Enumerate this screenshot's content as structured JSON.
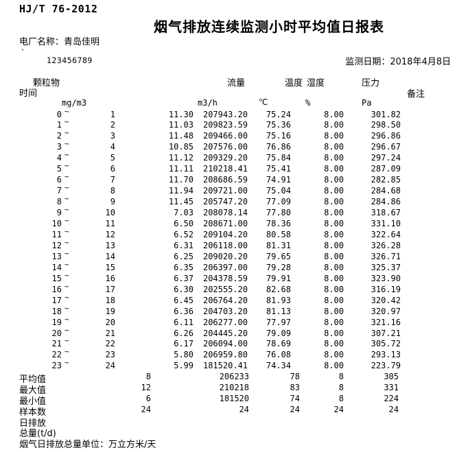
{
  "page": {
    "standard": "HJ/T 76-2012",
    "title": "烟气排放连续监测小时平均值日报表",
    "plant_label": "电厂名称：",
    "plant_name": "青岛佳明",
    "code_mark": "`",
    "code": "123456789",
    "date_label": "监测日期：",
    "date_value": "2018年4月8日"
  },
  "table": {
    "col_headers": {
      "time": "时间",
      "pm": "颗粒物",
      "flow": "流量",
      "temp": "温度",
      "humidity": "湿度",
      "pressure": "压力",
      "remark": "备注"
    },
    "units": {
      "pm": "mg/m3",
      "flow": "m3/h",
      "temp": "℃",
      "humidity": "%",
      "pressure": "Pa"
    },
    "tilde": "~",
    "rows": [
      {
        "start": "0",
        "end": "1",
        "pm": "11.30",
        "flow": "207943.20",
        "temp": "75.24",
        "humidity": "8.00",
        "pressure": "301.82"
      },
      {
        "start": "1",
        "end": "2",
        "pm": "11.03",
        "flow": "209823.59",
        "temp": "75.36",
        "humidity": "8.00",
        "pressure": "298.50"
      },
      {
        "start": "2",
        "end": "3",
        "pm": "11.48",
        "flow": "209466.00",
        "temp": "75.16",
        "humidity": "8.00",
        "pressure": "296.86"
      },
      {
        "start": "3",
        "end": "4",
        "pm": "10.85",
        "flow": "207576.00",
        "temp": "76.86",
        "humidity": "8.00",
        "pressure": "296.67"
      },
      {
        "start": "4",
        "end": "5",
        "pm": "11.12",
        "flow": "209329.20",
        "temp": "75.84",
        "humidity": "8.00",
        "pressure": "297.24"
      },
      {
        "start": "5",
        "end": "6",
        "pm": "11.11",
        "flow": "210218.41",
        "temp": "75.41",
        "humidity": "8.00",
        "pressure": "287.09"
      },
      {
        "start": "6",
        "end": "7",
        "pm": "11.70",
        "flow": "208686.59",
        "temp": "74.91",
        "humidity": "8.00",
        "pressure": "282.85"
      },
      {
        "start": "7",
        "end": "8",
        "pm": "11.94",
        "flow": "209721.00",
        "temp": "75.04",
        "humidity": "8.00",
        "pressure": "284.68"
      },
      {
        "start": "8",
        "end": "9",
        "pm": "11.45",
        "flow": "205747.20",
        "temp": "77.09",
        "humidity": "8.00",
        "pressure": "284.86"
      },
      {
        "start": "9",
        "end": "10",
        "pm": "7.03",
        "flow": "208078.14",
        "temp": "77.80",
        "humidity": "8.00",
        "pressure": "318.67"
      },
      {
        "start": "10",
        "end": "11",
        "pm": "6.50",
        "flow": "208671.00",
        "temp": "78.36",
        "humidity": "8.00",
        "pressure": "331.10"
      },
      {
        "start": "11",
        "end": "12",
        "pm": "6.52",
        "flow": "209104.20",
        "temp": "80.58",
        "humidity": "8.00",
        "pressure": "322.64"
      },
      {
        "start": "12",
        "end": "13",
        "pm": "6.31",
        "flow": "206118.00",
        "temp": "81.31",
        "humidity": "8.00",
        "pressure": "326.28"
      },
      {
        "start": "13",
        "end": "14",
        "pm": "6.25",
        "flow": "209020.20",
        "temp": "79.65",
        "humidity": "8.00",
        "pressure": "326.71"
      },
      {
        "start": "14",
        "end": "15",
        "pm": "6.35",
        "flow": "206397.00",
        "temp": "79.28",
        "humidity": "8.00",
        "pressure": "325.37"
      },
      {
        "start": "15",
        "end": "16",
        "pm": "6.37",
        "flow": "204378.59",
        "temp": "79.91",
        "humidity": "8.00",
        "pressure": "323.90"
      },
      {
        "start": "16",
        "end": "17",
        "pm": "6.30",
        "flow": "202555.20",
        "temp": "82.68",
        "humidity": "8.00",
        "pressure": "316.19"
      },
      {
        "start": "17",
        "end": "18",
        "pm": "6.45",
        "flow": "206764.20",
        "temp": "81.93",
        "humidity": "8.00",
        "pressure": "320.42"
      },
      {
        "start": "18",
        "end": "19",
        "pm": "6.36",
        "flow": "204703.20",
        "temp": "81.13",
        "humidity": "8.00",
        "pressure": "320.97"
      },
      {
        "start": "19",
        "end": "20",
        "pm": "6.11",
        "flow": "206277.00",
        "temp": "77.97",
        "humidity": "8.00",
        "pressure": "321.16"
      },
      {
        "start": "20",
        "end": "21",
        "pm": "6.26",
        "flow": "204445.20",
        "temp": "79.09",
        "humidity": "8.00",
        "pressure": "307.21"
      },
      {
        "start": "21",
        "end": "22",
        "pm": "6.17",
        "flow": "206094.00",
        "temp": "78.69",
        "humidity": "8.00",
        "pressure": "305.72"
      },
      {
        "start": "22",
        "end": "23",
        "pm": "5.80",
        "flow": "206959.80",
        "temp": "76.08",
        "humidity": "8.00",
        "pressure": "293.13"
      },
      {
        "start": "23",
        "end": "24",
        "pm": "5.99",
        "flow": "181520.41",
        "temp": "74.34",
        "humidity": "8.00",
        "pressure": "223.79"
      }
    ],
    "summary": [
      {
        "label": "平均值",
        "pm": "8",
        "flow": "206233",
        "temp": "78",
        "humidity": "8",
        "pressure": "305"
      },
      {
        "label": "最大值",
        "pm": "12",
        "flow": "210218",
        "temp": "83",
        "humidity": "8",
        "pressure": "331"
      },
      {
        "label": "最小值",
        "pm": "6",
        "flow": "181520",
        "temp": "74",
        "humidity": "8",
        "pressure": "224"
      },
      {
        "label": "样本数",
        "pm": "24",
        "flow": "24",
        "temp": "24",
        "humidity": "24",
        "pressure": "24"
      }
    ],
    "daily_emission_label": "日排放",
    "daily_total_label": "总量(t/d)",
    "footnote": "烟气日排放总量单位：万立方米/天"
  }
}
